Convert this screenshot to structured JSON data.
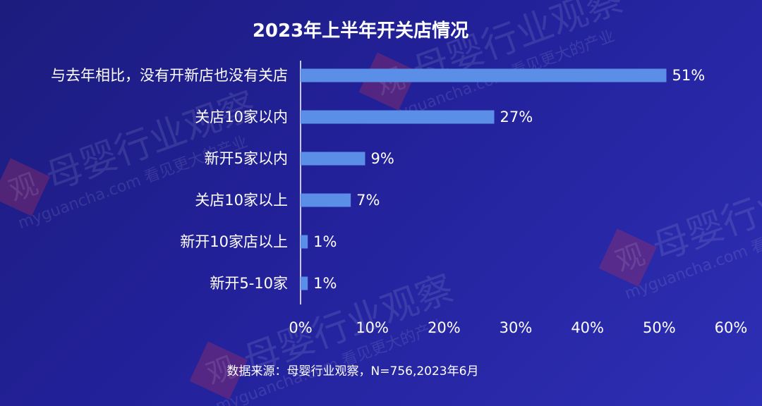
{
  "colors": {
    "bar": "#5b8ee6",
    "text": "#ffffff",
    "axis": "#ffffff",
    "watermark_seal": "#b0325a"
  },
  "watermark": {
    "seal_char": "观",
    "brand": "母婴行业观察",
    "domain": "myguancha.com 看见更大的产业"
  },
  "chart_data": {
    "type": "bar",
    "orientation": "horizontal",
    "title": "2023年上半年开关店情况",
    "categories": [
      "与去年相比，没有开新店也没有关店",
      "关店10家以内",
      "新开5家以内",
      "关店10家以上",
      "新开10家店以上",
      "新开5-10家"
    ],
    "values": [
      51,
      27,
      9,
      7,
      1,
      1
    ],
    "value_labels": [
      "51%",
      "27%",
      "9%",
      "7%",
      "1%",
      "1%"
    ],
    "xlim": [
      0,
      60
    ],
    "x_ticks": [
      0,
      10,
      20,
      30,
      40,
      50,
      60
    ],
    "x_tick_labels": [
      "0%",
      "10%",
      "20%",
      "30%",
      "40%",
      "50%",
      "60%"
    ],
    "xlabel": "",
    "ylabel": "",
    "grid": false,
    "legend": "none",
    "source": "数据来源：母婴行业观察，N=756,2023年6月"
  }
}
